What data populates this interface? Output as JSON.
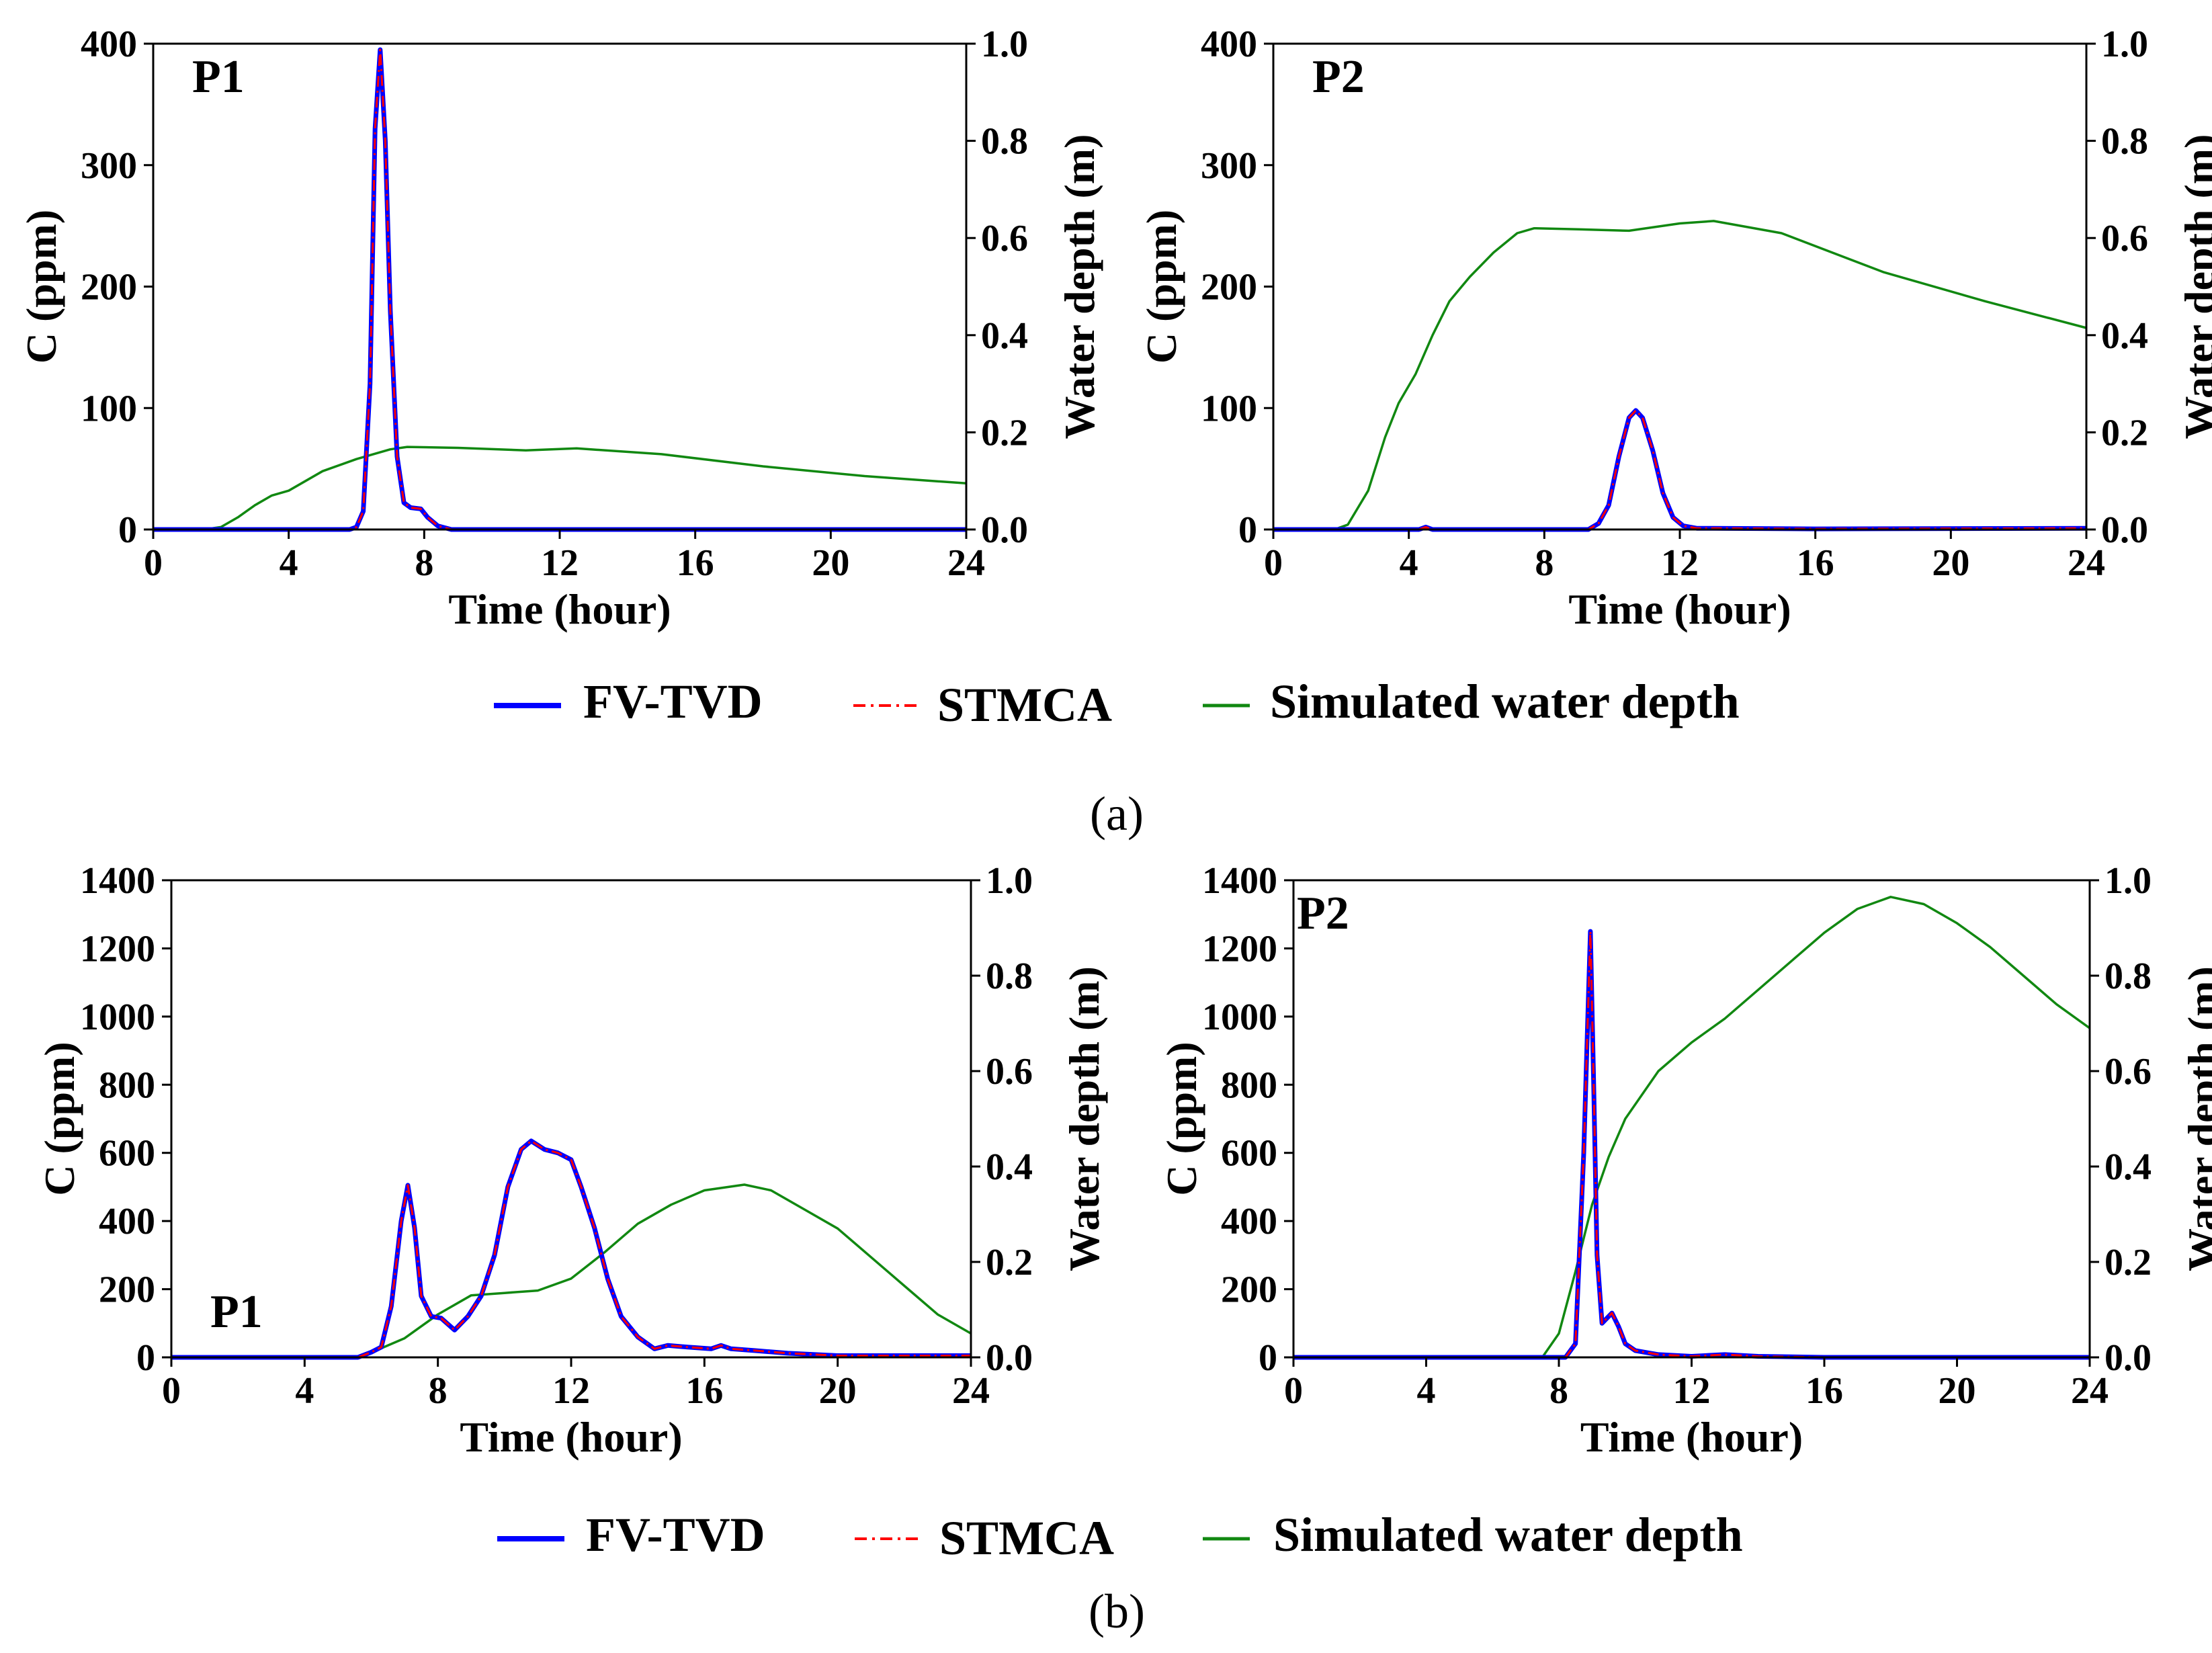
{
  "legend": {
    "a": [
      {
        "label": "FV-TVD",
        "color": "#0000ff",
        "style": "solid"
      },
      {
        "label": "STMCA",
        "color": "#ff0000",
        "style": "dashdot"
      },
      {
        "label": "Simulated water depth",
        "color": "#118811",
        "style": "solid"
      }
    ],
    "b": [
      {
        "label": "FV-TVD",
        "color": "#0000ff",
        "style": "solid"
      },
      {
        "label": "STMCA",
        "color": "#ff0000",
        "style": "dashdot"
      },
      {
        "label": "Simulated water depth",
        "color": "#118811",
        "style": "solid"
      }
    ]
  },
  "captions": {
    "a": "(a)",
    "b": "(b)"
  },
  "chart_data": [
    {
      "id": "a-P1",
      "type": "line",
      "panel_label": "P1",
      "panel_label_pos": "top-left",
      "xlabel": "Time (hour)",
      "ylabel": "C (ppm)",
      "y2label": "Water depth (m)",
      "xlim": [
        0,
        24
      ],
      "ylim": [
        0,
        400
      ],
      "y2lim": [
        0,
        1
      ],
      "xticks": [
        0,
        4,
        8,
        12,
        16,
        20,
        24
      ],
      "yticks": [
        0,
        100,
        200,
        300,
        400
      ],
      "y2ticks": [
        "0.0",
        "0.2",
        "0.4",
        "0.6",
        "0.8",
        "1.0"
      ],
      "series": [
        {
          "name": "FV-TVD",
          "axis": "left",
          "color": "#0000ff",
          "x": [
            0,
            5.8,
            6.0,
            6.2,
            6.4,
            6.55,
            6.7,
            6.85,
            7.0,
            7.2,
            7.4,
            7.6,
            7.9,
            8.1,
            8.4,
            8.8,
            9.5,
            24
          ],
          "y": [
            0,
            0,
            2,
            15,
            120,
            330,
            395,
            320,
            180,
            60,
            22,
            18,
            17,
            10,
            3,
            0,
            0,
            0
          ]
        },
        {
          "name": "STMCA",
          "axis": "left",
          "color": "#ff0000",
          "x": [
            0,
            5.8,
            6.0,
            6.2,
            6.4,
            6.55,
            6.7,
            6.85,
            7.0,
            7.2,
            7.4,
            7.6,
            7.9,
            8.1,
            8.4,
            8.8,
            9.5,
            24
          ],
          "y": [
            0,
            0,
            2,
            15,
            120,
            330,
            395,
            320,
            180,
            60,
            22,
            18,
            17,
            10,
            3,
            0,
            0,
            0
          ]
        },
        {
          "name": "Simulated water depth",
          "axis": "right",
          "color": "#118811",
          "x": [
            0,
            1.5,
            2,
            2.5,
            3,
            3.5,
            4,
            4.5,
            5,
            6,
            7,
            7.5,
            9,
            11,
            12.5,
            15,
            18,
            21,
            24
          ],
          "y": [
            0,
            0,
            0.005,
            0.025,
            0.05,
            0.07,
            0.08,
            0.1,
            0.12,
            0.145,
            0.165,
            0.17,
            0.168,
            0.163,
            0.167,
            0.155,
            0.13,
            0.11,
            0.095
          ]
        }
      ]
    },
    {
      "id": "a-P2",
      "type": "line",
      "panel_label": "P2",
      "panel_label_pos": "top-left",
      "xlabel": "Time (hour)",
      "ylabel": "C (ppm)",
      "y2label": "Water depth (m)",
      "xlim": [
        0,
        24
      ],
      "ylim": [
        0,
        400
      ],
      "y2lim": [
        0,
        1
      ],
      "xticks": [
        0,
        4,
        8,
        12,
        16,
        20,
        24
      ],
      "yticks": [
        0,
        100,
        200,
        300,
        400
      ],
      "y2ticks": [
        "0.0",
        "0.2",
        "0.4",
        "0.6",
        "0.8",
        "1.0"
      ],
      "series": [
        {
          "name": "FV-TVD",
          "axis": "left",
          "color": "#0000ff",
          "x": [
            0,
            4.3,
            4.5,
            4.7,
            9.3,
            9.6,
            9.9,
            10.2,
            10.5,
            10.7,
            10.9,
            11.2,
            11.5,
            11.8,
            12.1,
            12.5,
            13,
            16,
            24
          ],
          "y": [
            0,
            0,
            2,
            0,
            0,
            5,
            20,
            60,
            92,
            98,
            92,
            65,
            30,
            10,
            3,
            1,
            1,
            0.5,
            1
          ]
        },
        {
          "name": "STMCA",
          "axis": "left",
          "color": "#ff0000",
          "x": [
            0,
            4.3,
            4.5,
            4.7,
            9.3,
            9.6,
            9.9,
            10.2,
            10.5,
            10.7,
            10.9,
            11.2,
            11.5,
            11.8,
            12.1,
            12.5,
            13,
            16,
            24
          ],
          "y": [
            0,
            0,
            2,
            0,
            0,
            5,
            20,
            60,
            92,
            98,
            92,
            65,
            30,
            10,
            3,
            1,
            1,
            0.5,
            1
          ]
        },
        {
          "name": "Simulated water depth",
          "axis": "right",
          "color": "#118811",
          "x": [
            0,
            1.8,
            2.2,
            2.8,
            3.3,
            3.7,
            4.2,
            4.7,
            5.2,
            5.8,
            6.5,
            7.2,
            7.7,
            9,
            10.5,
            12,
            13,
            15,
            18,
            21,
            24
          ],
          "y": [
            0,
            0,
            0.01,
            0.08,
            0.19,
            0.26,
            0.32,
            0.4,
            0.47,
            0.52,
            0.57,
            0.61,
            0.62,
            0.618,
            0.615,
            0.63,
            0.635,
            0.61,
            0.53,
            0.47,
            0.415
          ]
        }
      ]
    },
    {
      "id": "b-P1",
      "type": "line",
      "panel_label": "P1",
      "panel_label_pos": "bottom-left",
      "xlabel": "Time (hour)",
      "ylabel": "C (ppm)",
      "y2label": "Water depth (m)",
      "xlim": [
        0,
        24
      ],
      "ylim": [
        0,
        1400
      ],
      "y2lim": [
        0,
        1
      ],
      "xticks": [
        0,
        4,
        8,
        12,
        16,
        20,
        24
      ],
      "yticks": [
        0,
        200,
        400,
        600,
        800,
        1000,
        1200,
        1400
      ],
      "y2ticks": [
        "0.0",
        "0.2",
        "0.4",
        "0.6",
        "0.8",
        "1.0"
      ],
      "series": [
        {
          "name": "FV-TVD",
          "axis": "left",
          "color": "#0000ff",
          "x": [
            0,
            5.6,
            6.0,
            6.3,
            6.6,
            6.9,
            7.1,
            7.3,
            7.5,
            7.8,
            8.1,
            8.5,
            8.9,
            9.3,
            9.7,
            10.1,
            10.5,
            10.8,
            11.2,
            11.6,
            12.0,
            12.3,
            12.7,
            13.1,
            13.5,
            14.0,
            14.5,
            14.9,
            15.5,
            16.2,
            16.5,
            16.8,
            17.5,
            18.5,
            20,
            24
          ],
          "y": [
            0,
            0,
            15,
            30,
            150,
            400,
            505,
            380,
            180,
            120,
            115,
            80,
            120,
            180,
            300,
            500,
            610,
            635,
            610,
            600,
            580,
            500,
            380,
            230,
            120,
            60,
            25,
            35,
            30,
            25,
            35,
            25,
            20,
            12,
            5,
            5
          ]
        },
        {
          "name": "STMCA",
          "axis": "left",
          "color": "#ff0000",
          "x": [
            0,
            5.6,
            6.0,
            6.3,
            6.6,
            6.9,
            7.1,
            7.3,
            7.5,
            7.8,
            8.1,
            8.5,
            8.9,
            9.3,
            9.7,
            10.1,
            10.5,
            10.8,
            11.2,
            11.6,
            12.0,
            12.3,
            12.7,
            13.1,
            13.5,
            14.0,
            14.5,
            14.9,
            15.5,
            16.2,
            16.5,
            16.8,
            17.5,
            18.5,
            20,
            24
          ],
          "y": [
            0,
            0,
            15,
            30,
            150,
            400,
            505,
            380,
            180,
            120,
            115,
            80,
            120,
            180,
            300,
            500,
            610,
            635,
            610,
            600,
            580,
            500,
            380,
            230,
            120,
            60,
            25,
            35,
            30,
            25,
            35,
            25,
            20,
            12,
            5,
            5
          ]
        },
        {
          "name": "Simulated water depth",
          "axis": "right",
          "color": "#118811",
          "x": [
            0,
            5.5,
            6.0,
            7.0,
            8.0,
            9.0,
            10.0,
            11.0,
            12.0,
            13.0,
            14.0,
            15.0,
            16.0,
            17.2,
            18.0,
            19.0,
            20.0,
            21.0,
            22.0,
            23.0,
            24.0
          ],
          "y": [
            0,
            0,
            0.01,
            0.04,
            0.09,
            0.13,
            0.135,
            0.14,
            0.165,
            0.22,
            0.28,
            0.32,
            0.35,
            0.362,
            0.35,
            0.31,
            0.27,
            0.21,
            0.15,
            0.09,
            0.05
          ]
        }
      ]
    },
    {
      "id": "b-P2",
      "type": "line",
      "panel_label": "P2",
      "panel_label_pos": "top-left",
      "xlabel": "Time (hour)",
      "ylabel": "C (ppm)",
      "y2label": "Water depth (m)",
      "xlim": [
        0,
        24
      ],
      "ylim": [
        0,
        1400
      ],
      "y2lim": [
        0,
        1
      ],
      "xticks": [
        0,
        4,
        8,
        12,
        16,
        20,
        24
      ],
      "yticks": [
        0,
        200,
        400,
        600,
        800,
        1000,
        1200,
        1400
      ],
      "y2ticks": [
        "0.0",
        "0.2",
        "0.4",
        "0.6",
        "0.8",
        "1.0"
      ],
      "series": [
        {
          "name": "FV-TVD",
          "axis": "left",
          "color": "#0000ff",
          "x": [
            0,
            8.2,
            8.5,
            8.75,
            8.95,
            9.05,
            9.15,
            9.3,
            9.5,
            9.6,
            9.8,
            10.0,
            10.3,
            11.0,
            12.0,
            13.0,
            14.0,
            16.0,
            24
          ],
          "y": [
            0,
            0,
            40,
            600,
            1250,
            800,
            300,
            100,
            120,
            130,
            90,
            40,
            20,
            8,
            3,
            8,
            3,
            0,
            0
          ]
        },
        {
          "name": "STMCA",
          "axis": "left",
          "color": "#ff0000",
          "x": [
            0,
            8.2,
            8.5,
            8.75,
            8.95,
            9.05,
            9.15,
            9.3,
            9.5,
            9.6,
            9.8,
            10.0,
            10.3,
            11.0,
            12.0,
            13.0,
            14.0,
            16.0,
            24
          ],
          "y": [
            0,
            0,
            40,
            600,
            1250,
            800,
            300,
            100,
            120,
            130,
            90,
            40,
            20,
            8,
            3,
            8,
            3,
            0,
            0
          ]
        },
        {
          "name": "Simulated water depth",
          "axis": "right",
          "color": "#118811",
          "x": [
            0,
            7.5,
            8.0,
            8.5,
            9.0,
            9.5,
            10.0,
            11.0,
            12.0,
            13.0,
            14.0,
            15.0,
            16.0,
            17.0,
            18.0,
            19.0,
            20.0,
            21.0,
            22.0,
            23.0,
            24.0
          ],
          "y": [
            0,
            0,
            0.05,
            0.18,
            0.32,
            0.42,
            0.5,
            0.6,
            0.66,
            0.71,
            0.77,
            0.83,
            0.89,
            0.94,
            0.965,
            0.95,
            0.91,
            0.86,
            0.8,
            0.74,
            0.69
          ]
        }
      ]
    }
  ]
}
